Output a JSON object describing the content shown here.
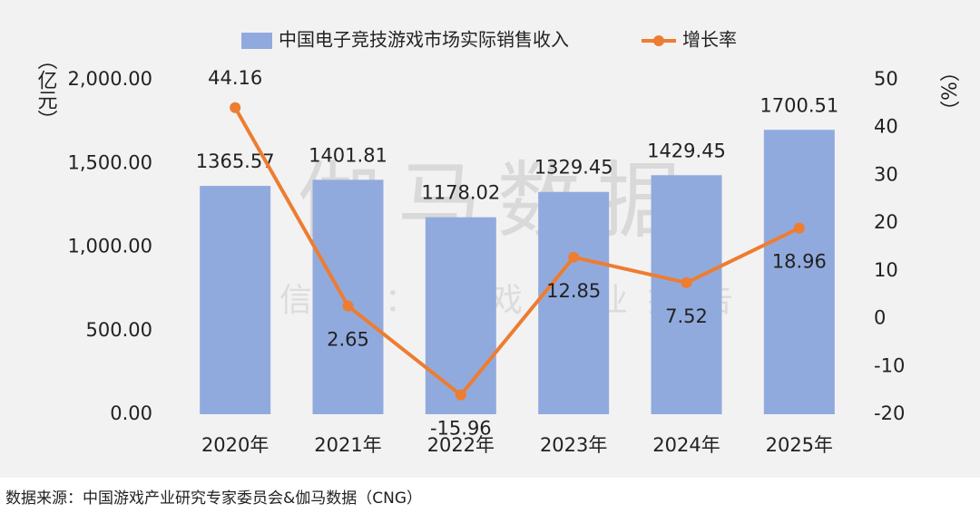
{
  "chart_data": {
    "type": "bar",
    "categories": [
      "2020年",
      "2021年",
      "2022年",
      "2023年",
      "2024年",
      "2025年"
    ],
    "series": [
      {
        "name": "中国电子竞技游戏市场实际销售收入",
        "type": "bar",
        "color": "#91aade",
        "values": [
          1365.57,
          1401.81,
          1178.02,
          1329.45,
          1429.45,
          1700.51
        ]
      },
      {
        "name": "增长率",
        "type": "line",
        "axis": "y2",
        "color": "#ed7d31",
        "values": [
          44.16,
          2.65,
          -15.96,
          12.85,
          7.52,
          18.96
        ]
      }
    ],
    "ylim": [
      0,
      2000
    ],
    "yticks": [
      {
        "value": 0,
        "label": "0.00"
      },
      {
        "value": 500,
        "label": "500.00"
      },
      {
        "value": 1000,
        "label": "1,000.00"
      },
      {
        "value": 1500,
        "label": "1,500.00"
      },
      {
        "value": 2000,
        "label": "2,000.00"
      }
    ],
    "y2lim": [
      -20,
      50
    ],
    "y2ticks": [
      -20,
      -10,
      0,
      10,
      20,
      30,
      40,
      50
    ],
    "y_axis_label": "（亿元）",
    "y2_axis_label": "（%）",
    "grid": false,
    "legend": "top",
    "watermark": [
      "伽马数据",
      "微信号：游戏产业报告"
    ]
  },
  "source": "数据来源：中国游戏产业研究专家委员会&伽马数据（CNG）"
}
